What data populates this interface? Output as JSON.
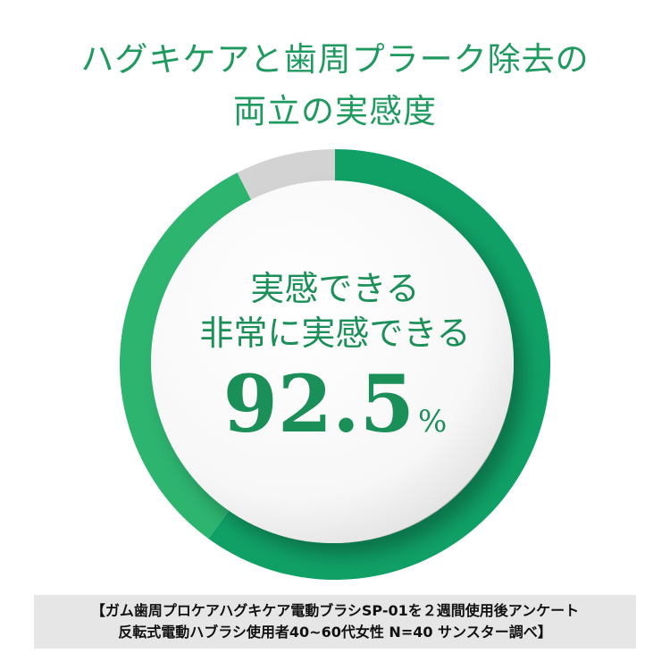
{
  "title": {
    "line1": "ハグキケアと歯周プラーク除去の",
    "line2": "両立の実感度"
  },
  "center": {
    "line1": "実感できる",
    "line2": "非常に実感できる",
    "value": "92.5",
    "unit": "%"
  },
  "footnote": {
    "line1": "【ガム歯周プロケアハグキケア電動ブラシSP-01を２週間使用後アンケート",
    "line2": "反転式電動ハブラシ使用者40~60代女性 N=40 サンスター調べ】"
  },
  "chart_data": {
    "type": "pie",
    "donut": true,
    "start": "top",
    "direction": "clockwise",
    "values": [
      60,
      32.5,
      7.5
    ],
    "colors": [
      "#10a066",
      "#2db46f",
      "#d3d3d3"
    ],
    "total_shown": 92.5
  }
}
